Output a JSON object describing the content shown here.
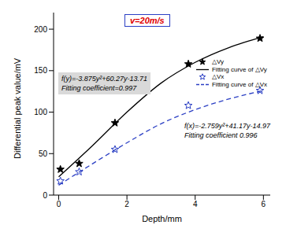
{
  "chart_data": {
    "type": "scatter",
    "title": "v=20m/s",
    "x_label": "Depth/mm",
    "y_label": "Differential peak value/mV",
    "xlim": [
      -0.15,
      6.2
    ],
    "xticks": [
      0,
      2,
      4,
      6
    ],
    "ylim": [
      0,
      220
    ],
    "yticks": [
      0,
      50,
      100,
      150,
      200
    ],
    "grid": false,
    "legend": "upper right",
    "series": [
      {
        "name": "△Vy",
        "type": "scatter",
        "marker": "star",
        "color": "#000000",
        "x": [
          0.05,
          0.6,
          1.65,
          3.8,
          5.9
        ],
        "values": [
          31,
          38,
          87,
          158,
          189
        ]
      },
      {
        "name": "Fitting curve of △Vy",
        "type": "line",
        "line_style": "solid",
        "color": "#000000",
        "x": [
          0,
          1,
          2,
          3,
          4,
          5,
          6
        ],
        "values": [
          22,
          60,
          100,
          135,
          160,
          178,
          191
        ]
      },
      {
        "name": "△Vx",
        "type": "scatter",
        "marker": "open_star",
        "color": "#2b3fc4",
        "x": [
          0.05,
          0.6,
          1.65,
          3.8,
          5.9
        ],
        "values": [
          17,
          28,
          55,
          108,
          126
        ]
      },
      {
        "name": "Fitting curve of △Vx",
        "type": "line",
        "line_style": "dashed",
        "color": "#2b3fc4",
        "x": [
          0,
          1,
          2,
          3,
          4,
          5,
          6
        ],
        "values": [
          12,
          38,
          63,
          86,
          103,
          116,
          126
        ]
      }
    ],
    "annotations": [
      [
        "f(y)=-3.875y²+60.27y-13.71",
        "Fitting coefficient=0.997"
      ],
      [
        "f(x)=-2.759y²+41.17y-14.97",
        "Fitting coefficient 0.996"
      ]
    ]
  }
}
